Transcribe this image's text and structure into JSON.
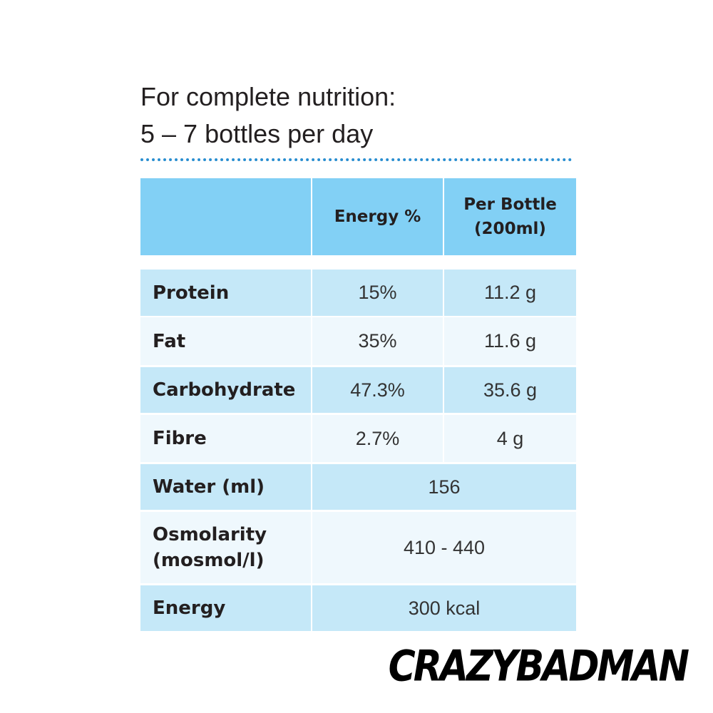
{
  "header": {
    "title_lines": [
      "For complete nutrition:",
      "5 – 7 bottles per day"
    ]
  },
  "table": {
    "columns": [
      "Energy %",
      "Per Bottle\n(200ml)"
    ],
    "rows": [
      {
        "label": "Protein",
        "cells": [
          "15%",
          "11.2 g"
        ]
      },
      {
        "label": "Fat",
        "cells": [
          "35%",
          "11.6 g"
        ]
      },
      {
        "label": "Carbohydrate",
        "cells": [
          "47.3%",
          "35.6 g"
        ]
      },
      {
        "label": "Fibre",
        "cells": [
          "2.7%",
          "4 g"
        ]
      },
      {
        "label": "Water (ml)",
        "cells": [
          "156"
        ]
      },
      {
        "label": "Osmolarity\n(mosmol/l)",
        "cells": [
          "410 - 440"
        ]
      },
      {
        "label": "Energy",
        "cells": [
          "300 kcal"
        ]
      }
    ]
  },
  "watermark": "CRAZYBADMAN"
}
